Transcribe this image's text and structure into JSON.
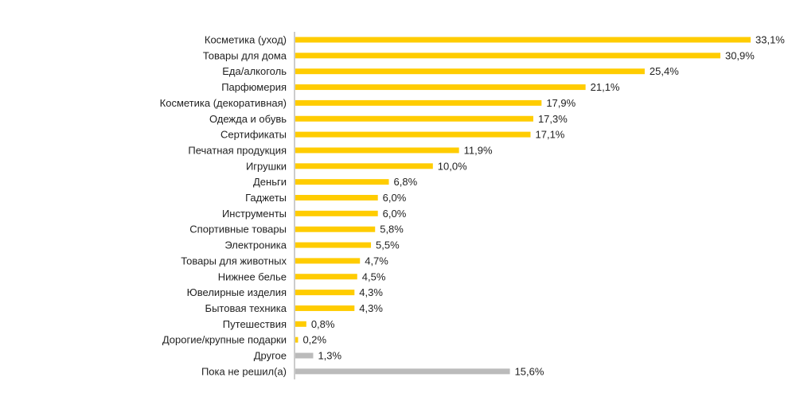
{
  "chart_data": {
    "type": "bar",
    "orientation": "horizontal",
    "categories": [
      "Косметика (уход)",
      "Товары для дома",
      "Еда/алкоголь",
      "Парфюмерия",
      "Косметика (декоративная)",
      "Одежда и обувь",
      "Сертификаты",
      "Печатная продукция",
      "Игрушки",
      "Деньги",
      "Гаджеты",
      "Инструменты",
      "Спортивные товары",
      "Электроника",
      "Товары для животных",
      "Нижнее белье",
      "Ювелирные изделия",
      "Бытовая техника",
      "Путешествия",
      "Дорогие/крупные подарки",
      "Другое",
      "Пока не решил(а)"
    ],
    "values": [
      33.1,
      30.9,
      25.4,
      21.1,
      17.9,
      17.3,
      17.1,
      11.9,
      10.0,
      6.8,
      6.0,
      6.0,
      5.8,
      5.5,
      4.7,
      4.5,
      4.3,
      4.3,
      0.8,
      0.2,
      1.3,
      15.6
    ],
    "value_labels": [
      "33,1%",
      "30,9%",
      "25,4%",
      "21,1%",
      "17,9%",
      "17,3%",
      "17,1%",
      "11,9%",
      "10,0%",
      "6,8%",
      "6,0%",
      "6,0%",
      "5,8%",
      "5,5%",
      "4,7%",
      "4,5%",
      "4,3%",
      "4,3%",
      "0,8%",
      "0,2%",
      "1,3%",
      "15,6%"
    ],
    "colors": [
      "#FFCC00",
      "#FFCC00",
      "#FFCC00",
      "#FFCC00",
      "#FFCC00",
      "#FFCC00",
      "#FFCC00",
      "#FFCC00",
      "#FFCC00",
      "#FFCC00",
      "#FFCC00",
      "#FFCC00",
      "#FFCC00",
      "#FFCC00",
      "#FFCC00",
      "#FFCC00",
      "#FFCC00",
      "#FFCC00",
      "#FFCC00",
      "#FFCC00",
      "#BBBBBB",
      "#BBBBBB"
    ],
    "unit": "%",
    "xlim": [
      0,
      33.1
    ],
    "grid": false,
    "legend": "none",
    "title": "",
    "xlabel": "",
    "ylabel": ""
  }
}
